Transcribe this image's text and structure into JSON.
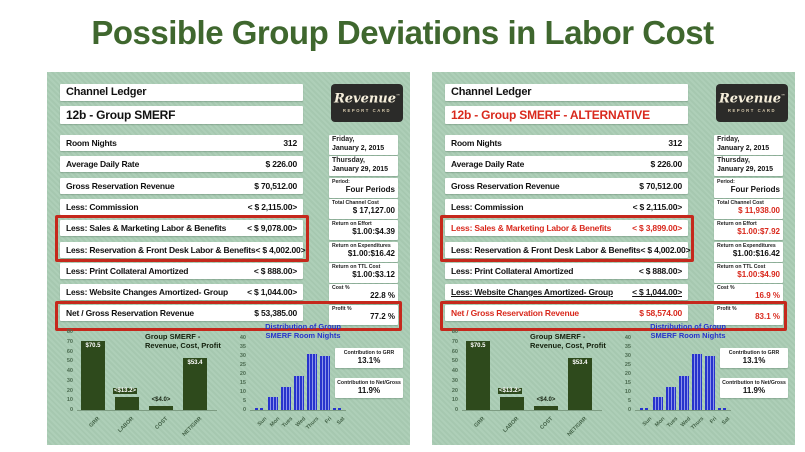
{
  "page": {
    "title": "Possible Group Deviations in Labor Cost"
  },
  "colors": {
    "title_green": "#3f672e",
    "panel_bg": "#a9ccb4",
    "accent_red": "#d9291d",
    "bar_green": "#2e4a1c",
    "bar_blue": "#2733cc",
    "logo_bg": "#2b2b29"
  },
  "logo": {
    "brand": "Revenue",
    "tm": "™",
    "tagline": "REPORT CARD"
  },
  "contributions": [
    {
      "label": "Contribution to GRR",
      "value": "13.1%"
    },
    {
      "label": "Contribution to Net/Gross",
      "value": "11.9%"
    }
  ],
  "chart_data": [
    {
      "type": "bar",
      "title": "Group SMERF - Revenue, Cost, Profit",
      "title_lines": [
        "Group SMERF -",
        "Revenue, Cost, Profit"
      ],
      "categories": [
        "GRR",
        "LABOR",
        "COST",
        "NET/GRR"
      ],
      "values": [
        70.5,
        13.2,
        4.0,
        53.4
      ],
      "bar_labels": [
        "$70.5",
        "<$13.2>",
        "<$4.0>",
        "$53.4"
      ],
      "ylim": [
        0,
        80
      ],
      "ytick_step": 10,
      "bar_color": "#2e4a1c",
      "note": "appears identically in both panels"
    },
    {
      "type": "bar",
      "title": "Distribution of Group SMERF Room Nights",
      "title_lines": [
        "Distribution of Group",
        "SMERF Room Nights"
      ],
      "categories": [
        "Sun",
        "Mon",
        "Tues",
        "Wed",
        "Thurs",
        "Fri",
        "Sat"
      ],
      "values": [
        0,
        7,
        13,
        19,
        31,
        30,
        0
      ],
      "ylim": [
        0,
        40
      ],
      "ytick_step": 5,
      "bar_color": "#2733cc",
      "note": "appears identically in both panels"
    }
  ],
  "panels": [
    {
      "header": {
        "title": "Channel Ledger",
        "subtitle": "12b - Group SMERF"
      },
      "rows": [
        {
          "label": "Room Nights",
          "value": "312"
        },
        {
          "label": "Average Daily Rate",
          "value": "$ 226.00"
        },
        {
          "label": "Gross Reservation Revenue",
          "value": "$ 70,512.00"
        },
        {
          "label": "Less: Commission",
          "value": "< $ 2,115.00>"
        },
        {
          "label": "Less: Sales & Marketing Labor & Benefits",
          "value": "< $ 9,078.00>"
        },
        {
          "label": "Less: Reservation & Front Desk Labor & Benefits",
          "value": "< $ 4,002.00>"
        },
        {
          "label": "Less: Print Collateral Amortized",
          "value": "< $ 888.00>"
        },
        {
          "label": "Less: Website Changes Amortized- Group",
          "value": "< $ 1,044.00>"
        },
        {
          "label": "Net / Gross Reservation Revenue",
          "value": "$ 53,385.00"
        }
      ],
      "side": [
        {
          "label": "Friday,",
          "value": "January 2, 2015"
        },
        {
          "label": "Thursday,",
          "value": "January 29, 2015"
        },
        {
          "label": "Period:",
          "value": "Four Periods"
        },
        {
          "label": "Total Channel Cost",
          "value": "$ 17,127.00"
        },
        {
          "label": "Return on Effort",
          "value": "$1.00:$4.39"
        },
        {
          "label": "Return on Expenditures",
          "value": "$1.00:$16.42"
        },
        {
          "label": "Return on TTL Cost",
          "value": "$1.00:$3.12"
        },
        {
          "label": "Cost %",
          "value": "22.8 %"
        },
        {
          "label": "Profit %",
          "value": "77.2 %"
        }
      ]
    },
    {
      "header": {
        "title": "Channel Ledger",
        "subtitle": "12b - Group SMERF - ALTERNATIVE"
      },
      "rows": [
        {
          "label": "Room Nights",
          "value": "312"
        },
        {
          "label": "Average Daily Rate",
          "value": "$ 226.00"
        },
        {
          "label": "Gross Reservation Revenue",
          "value": "$ 70,512.00"
        },
        {
          "label": "Less: Commission",
          "value": "< $ 2,115.00>"
        },
        {
          "label": "Less: Sales & Marketing Labor & Benefits",
          "value": "< $ 3,899.00>"
        },
        {
          "label": "Less: Reservation & Front Desk Labor & Benefits",
          "value": "< $ 4,002.00>"
        },
        {
          "label": "Less: Print Collateral Amortized",
          "value": "< $ 888.00>"
        },
        {
          "label": "Less: Website Changes Amortized- Group",
          "value": "< $ 1,044.00>"
        },
        {
          "label": "Net / Gross Reservation Revenue",
          "value": "$ 58,574.00"
        }
      ],
      "side": [
        {
          "label": "Friday,",
          "value": "January 2, 2015"
        },
        {
          "label": "Thursday,",
          "value": "January 29, 2015"
        },
        {
          "label": "Period:",
          "value": "Four Periods"
        },
        {
          "label": "Total Channel Cost",
          "value": "$ 11,938.00"
        },
        {
          "label": "Return on Effort",
          "value": "$1.00:$7.92"
        },
        {
          "label": "Return on Expenditures",
          "value": "$1.00:$16.42"
        },
        {
          "label": "Return on TTL Cost",
          "value": "$1.00:$4.90"
        },
        {
          "label": "Cost %",
          "value": "16.9 %"
        },
        {
          "label": "Profit %",
          "value": "83.1 %"
        }
      ]
    }
  ]
}
